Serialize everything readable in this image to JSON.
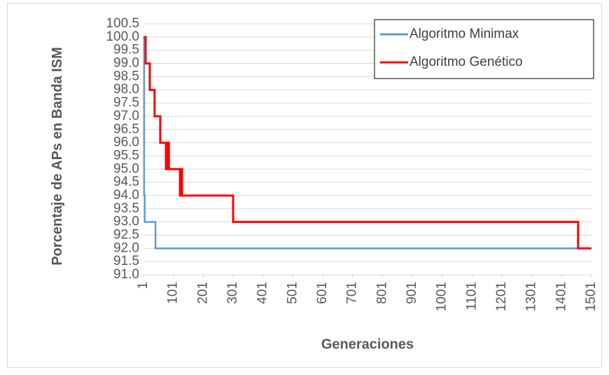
{
  "chart_data": {
    "type": "line",
    "x_label": "Generaciones",
    "y_label": "Porcentaje de APs en Banda ISM",
    "xlim": [
      1,
      1501
    ],
    "xticks": [
      1,
      101,
      201,
      301,
      401,
      501,
      601,
      701,
      801,
      901,
      1001,
      1101,
      1201,
      1301,
      1401,
      1501
    ],
    "ylim": [
      91,
      100.5
    ],
    "yticks": [
      {
        "value": 91,
        "label": "91.0"
      },
      91.5,
      {
        "value": 92,
        "label": "92.0"
      },
      92.5,
      {
        "value": 93,
        "label": "93.0"
      },
      93.5,
      {
        "value": 94,
        "label": "94.0"
      },
      94.5,
      {
        "value": 95,
        "label": "95.0"
      },
      95.5,
      {
        "value": 96,
        "label": "96.0"
      },
      96.5,
      {
        "value": 97,
        "label": "97.0"
      },
      97.5,
      {
        "value": 98,
        "label": "98.0"
      },
      98.5,
      {
        "value": 99,
        "label": "99.0"
      },
      99.5,
      {
        "value": 100,
        "label": "100.0"
      },
      100.5
    ],
    "grid": true,
    "legend": "upper right",
    "series": [
      {
        "name": "Algoritmo Minimax",
        "color": "#5b9bd5",
        "x": [
          1,
          3,
          3,
          5,
          5,
          41,
          41,
          1501
        ],
        "values": [
          100,
          100,
          94,
          94,
          93,
          93,
          92,
          92
        ]
      },
      {
        "name": "Algoritmo Genético",
        "color": "#ff0000",
        "x": [
          1,
          8,
          8,
          22,
          22,
          38,
          38,
          57,
          57,
          76,
          76,
          80,
          80,
          86,
          86,
          123,
          123,
          127,
          127,
          130,
          130,
          301,
          301,
          1456,
          1456,
          1501
        ],
        "values": [
          100,
          100,
          99,
          99,
          98,
          98,
          97,
          97,
          96,
          96,
          95,
          95,
          96,
          96,
          95,
          95,
          94,
          94,
          95,
          95,
          94,
          94,
          93,
          93,
          92,
          92
        ]
      }
    ]
  }
}
